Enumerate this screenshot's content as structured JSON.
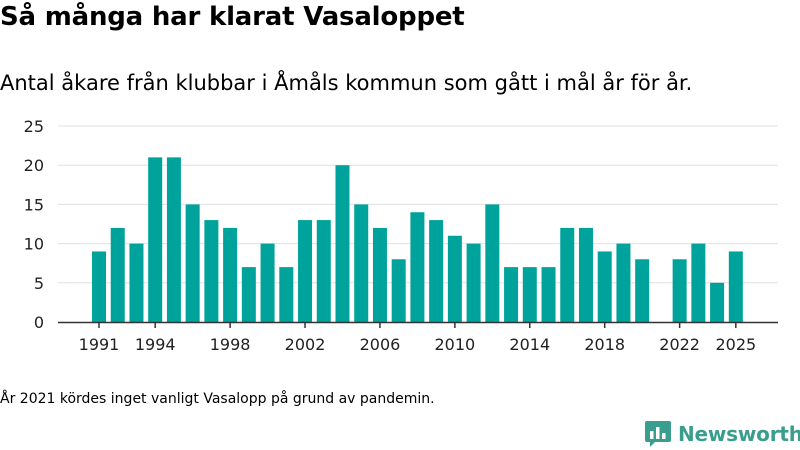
{
  "title": "Så många har klarat Vasaloppet",
  "subtitle": "Antal åkare från klubbar i Åmåls kommun som gått i mål år för år.",
  "footnote": "År 2021 kördes inget vanligt Vasalopp på grund av pandemin.",
  "brand": {
    "name": "Newsworthy",
    "icon": "newsworthy-logo-icon"
  },
  "colors": {
    "bar": "#00a39b",
    "grid": "#e0e0e0",
    "axis": "#333333",
    "brand": "#3a9e8f"
  },
  "chart_data": {
    "type": "bar",
    "title": "Så många har klarat Vasaloppet",
    "xlabel": "",
    "ylabel": "",
    "ylim": [
      0,
      25
    ],
    "yticks": [
      0,
      5,
      10,
      15,
      20,
      25
    ],
    "xticks": [
      1991,
      1994,
      1998,
      2002,
      2006,
      2010,
      2014,
      2018,
      2022,
      2025
    ],
    "grid": true,
    "categories": [
      1991,
      1992,
      1993,
      1994,
      1995,
      1996,
      1997,
      1998,
      1999,
      2000,
      2001,
      2002,
      2003,
      2004,
      2005,
      2006,
      2007,
      2008,
      2009,
      2010,
      2011,
      2012,
      2013,
      2014,
      2015,
      2016,
      2017,
      2018,
      2019,
      2020,
      2021,
      2022,
      2023,
      2024,
      2025
    ],
    "values": [
      9,
      12,
      10,
      21,
      21,
      15,
      13,
      12,
      7,
      10,
      7,
      13,
      13,
      20,
      15,
      12,
      8,
      14,
      13,
      11,
      10,
      15,
      7,
      7,
      7,
      12,
      12,
      9,
      10,
      8,
      null,
      8,
      10,
      5,
      9
    ]
  }
}
